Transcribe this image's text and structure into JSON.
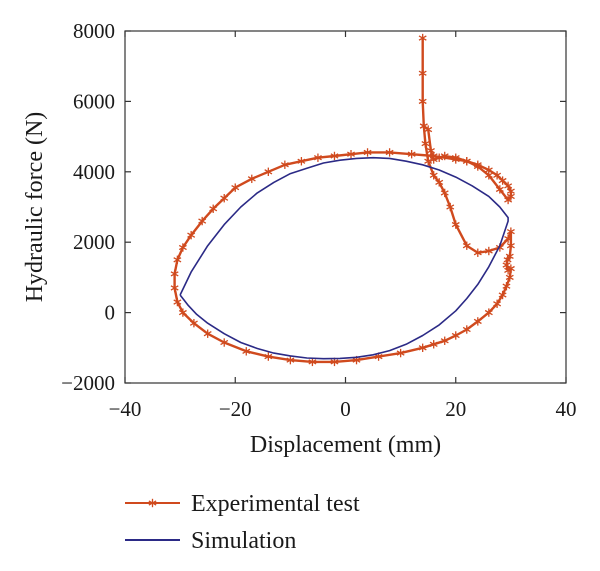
{
  "chart_data": {
    "type": "line",
    "title": "",
    "xlabel": "Displacement (mm)",
    "ylabel": "Hydraulic force (N)",
    "xlim": [
      -40,
      40
    ],
    "ylim": [
      -2000,
      8000
    ],
    "xticks": [
      "−40",
      "−20",
      "0",
      "20",
      "40"
    ],
    "xtick_values": [
      -40,
      -20,
      0,
      20,
      40
    ],
    "yticks": [
      "−2000",
      "0",
      "2000",
      "4000",
      "6000",
      "8000"
    ],
    "ytick_values": [
      -2000,
      0,
      2000,
      4000,
      6000,
      8000
    ],
    "grid": false,
    "legend_position": "bottom",
    "series": [
      {
        "name": "Experimental test",
        "color": "#d04a1e",
        "marker": "asterisk",
        "x": [
          14,
          14,
          14,
          14.2,
          14.5,
          15,
          16,
          17,
          18,
          19,
          20,
          22,
          24,
          26,
          28,
          29.5,
          30,
          30,
          29.8,
          29.4,
          29.2,
          29.5,
          30,
          29.8,
          29.2,
          28.5,
          27.5,
          26,
          24,
          22,
          20,
          18,
          16,
          14,
          10,
          6,
          2,
          -2,
          -6,
          -10,
          -14,
          -18,
          -22,
          -25,
          -27.5,
          -29.5,
          -30.5,
          -31,
          -31,
          -30.5,
          -29.5,
          -28,
          -26,
          -24,
          -22,
          -20,
          -17,
          -14,
          -11,
          -8,
          -5,
          -2,
          1,
          4,
          8,
          12,
          16,
          20,
          22,
          24,
          26,
          27.5,
          28.5,
          29.5,
          30,
          30,
          29.5,
          28,
          26,
          24,
          22,
          20,
          18,
          17,
          16,
          15.5,
          15,
          14.2
        ],
        "y": [
          7800,
          6800,
          6000,
          5300,
          4800,
          4300,
          3900,
          3700,
          3400,
          3000,
          2500,
          1900,
          1700,
          1750,
          1850,
          2100,
          2300,
          1900,
          1600,
          1500,
          1350,
          1200,
          1250,
          1000,
          750,
          500,
          250,
          0,
          -250,
          -480,
          -650,
          -800,
          -900,
          -1000,
          -1150,
          -1250,
          -1350,
          -1400,
          -1400,
          -1350,
          -1250,
          -1100,
          -850,
          -600,
          -300,
          0,
          300,
          700,
          1100,
          1500,
          1850,
          2200,
          2600,
          2950,
          3250,
          3550,
          3800,
          4000,
          4200,
          4300,
          4400,
          4450,
          4500,
          4550,
          4550,
          4500,
          4450,
          4350,
          4300,
          4200,
          4050,
          3900,
          3750,
          3600,
          3450,
          3300,
          3200,
          3500,
          3900,
          4150,
          4300,
          4400,
          4450,
          4400,
          4350,
          4600,
          5200,
          5300
        ]
      },
      {
        "name": "Simulation",
        "color": "#2b2a86",
        "marker": "none",
        "x": [
          -30,
          -28,
          -25,
          -22,
          -19,
          -16,
          -13,
          -10,
          -7,
          -4,
          -1,
          2,
          5,
          8,
          11,
          14,
          17,
          20,
          23,
          26,
          28,
          29.5,
          29.5,
          28,
          26,
          24,
          22,
          20,
          17,
          14,
          11,
          8,
          5,
          2,
          -1,
          -4,
          -7,
          -10,
          -13,
          -16,
          -19,
          -22,
          -25,
          -27,
          -28.5,
          -30
        ],
        "y": [
          500,
          1150,
          1900,
          2500,
          3000,
          3400,
          3700,
          3950,
          4100,
          4250,
          4330,
          4380,
          4400,
          4380,
          4300,
          4200,
          4050,
          3850,
          3600,
          3300,
          3000,
          2700,
          2600,
          1900,
          1300,
          800,
          400,
          50,
          -350,
          -650,
          -900,
          -1080,
          -1200,
          -1270,
          -1300,
          -1310,
          -1290,
          -1230,
          -1150,
          -1020,
          -850,
          -600,
          -300,
          -50,
          200,
          500
        ]
      }
    ]
  }
}
